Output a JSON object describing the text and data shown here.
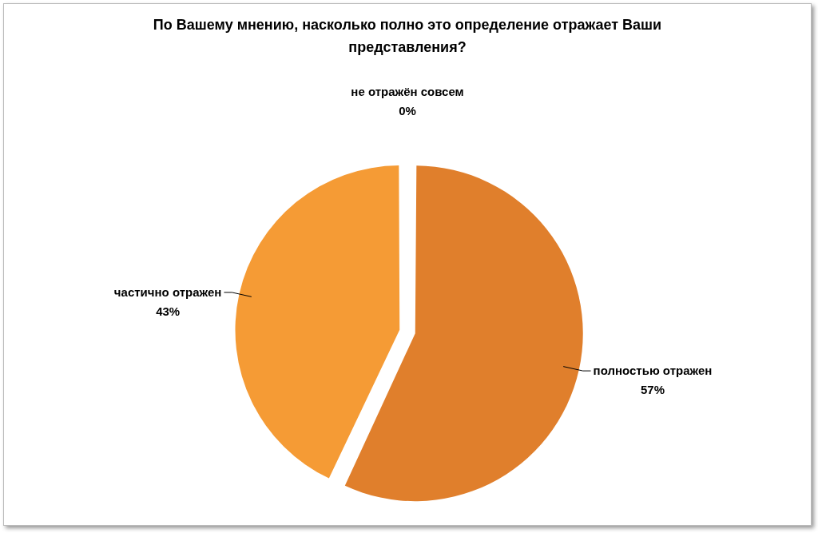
{
  "chart_data": {
    "type": "pie",
    "title": "По Вашему мнению, насколько полно это определение отражает Ваши представления?",
    "categories": [
      "полностью отражен",
      "частично отражен",
      "не отражён совсем"
    ],
    "values": [
      57,
      43,
      0
    ],
    "value_labels": [
      "57%",
      "43%",
      "0%"
    ],
    "colors": [
      "#e07f2c",
      "#f59b35",
      "#f7a94a"
    ],
    "legend": false
  }
}
